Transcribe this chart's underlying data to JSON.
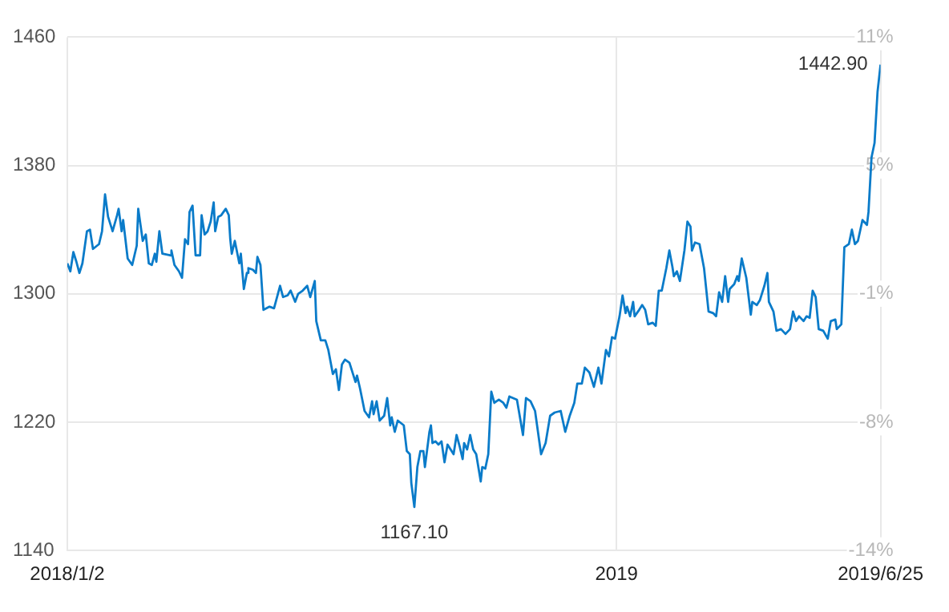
{
  "chart_data": {
    "type": "line",
    "x": [
      "2018-01-02",
      "2018-01-04",
      "2018-01-06",
      "2018-01-08",
      "2018-01-10",
      "2018-01-12",
      "2018-01-15",
      "2018-01-17",
      "2018-01-19",
      "2018-01-23",
      "2018-01-25",
      "2018-01-27",
      "2018-01-29",
      "2018-02-01",
      "2018-02-04",
      "2018-02-05",
      "2018-02-07",
      "2018-02-08",
      "2018-02-11",
      "2018-02-14",
      "2018-02-17",
      "2018-02-18",
      "2018-02-21",
      "2018-02-23",
      "2018-02-25",
      "2018-02-27",
      "2018-03-01",
      "2018-03-02",
      "2018-03-04",
      "2018-03-06",
      "2018-03-11",
      "2018-03-12",
      "2018-03-14",
      "2018-03-17",
      "2018-03-19",
      "2018-03-21",
      "2018-03-23",
      "2018-03-24",
      "2018-03-26",
      "2018-03-28",
      "2018-03-31",
      "2018-04-01",
      "2018-04-03",
      "2018-04-05",
      "2018-04-07",
      "2018-04-09",
      "2018-04-10",
      "2018-04-12",
      "2018-04-14",
      "2018-04-17",
      "2018-04-19",
      "2018-04-20",
      "2018-04-21",
      "2018-04-23",
      "2018-04-26",
      "2018-04-27",
      "2018-04-29",
      "2018-05-01",
      "2018-05-02",
      "2018-05-05",
      "2018-05-07",
      "2018-05-08",
      "2018-05-10",
      "2018-05-12",
      "2018-05-16",
      "2018-05-19",
      "2018-05-23",
      "2018-05-25",
      "2018-05-28",
      "2018-05-30",
      "2018-06-02",
      "2018-06-04",
      "2018-06-07",
      "2018-06-10",
      "2018-06-12",
      "2018-06-15",
      "2018-06-16",
      "2018-06-19",
      "2018-06-22",
      "2018-06-24",
      "2018-06-27",
      "2018-06-29",
      "2018-07-01",
      "2018-07-03",
      "2018-07-05",
      "2018-07-08",
      "2018-07-12",
      "2018-07-13",
      "2018-07-15",
      "2018-07-18",
      "2018-07-21",
      "2018-07-23",
      "2018-07-24",
      "2018-07-26",
      "2018-07-28",
      "2018-07-31",
      "2018-08-02",
      "2018-08-04",
      "2018-08-05",
      "2018-08-07",
      "2018-08-09",
      "2018-08-13",
      "2018-08-15",
      "2018-08-17",
      "2018-08-18",
      "2018-08-20",
      "2018-08-22",
      "2018-08-24",
      "2018-08-26",
      "2018-08-27",
      "2018-08-30",
      "2018-08-31",
      "2018-09-01",
      "2018-09-03",
      "2018-09-05",
      "2018-09-07",
      "2018-09-09",
      "2018-09-11",
      "2018-09-13",
      "2018-09-15",
      "2018-09-17",
      "2018-09-19",
      "2018-09-21",
      "2018-09-22",
      "2018-09-24",
      "2018-09-26",
      "2018-09-28",
      "2018-09-30",
      "2018-10-03",
      "2018-10-04",
      "2018-10-06",
      "2018-10-08",
      "2018-10-10",
      "2018-10-12",
      "2018-10-15",
      "2018-10-18",
      "2018-10-20",
      "2018-10-22",
      "2018-10-27",
      "2018-10-31",
      "2018-11-02",
      "2018-11-05",
      "2018-11-08",
      "2018-11-12",
      "2018-11-15",
      "2018-11-18",
      "2018-11-21",
      "2018-11-25",
      "2018-11-28",
      "2018-12-01",
      "2018-12-04",
      "2018-12-06",
      "2018-12-09",
      "2018-12-11",
      "2018-12-14",
      "2018-12-17",
      "2018-12-20",
      "2018-12-22",
      "2018-12-25",
      "2018-12-27",
      "2018-12-29",
      "2018-12-31",
      "2019-01-03",
      "2019-01-05",
      "2019-01-07",
      "2019-01-08",
      "2019-01-10",
      "2019-01-12",
      "2019-01-13",
      "2019-01-16",
      "2019-01-18",
      "2019-01-20",
      "2019-01-22",
      "2019-01-25",
      "2019-01-27",
      "2019-01-29",
      "2019-01-31",
      "2019-02-03",
      "2019-02-05",
      "2019-02-07",
      "2019-02-08",
      "2019-02-10",
      "2019-02-12",
      "2019-02-15",
      "2019-02-17",
      "2019-02-19",
      "2019-02-20",
      "2019-02-22",
      "2019-02-25",
      "2019-02-28",
      "2019-03-03",
      "2019-03-06",
      "2019-03-08",
      "2019-03-10",
      "2019-03-12",
      "2019-03-14",
      "2019-03-16",
      "2019-03-17",
      "2019-03-20",
      "2019-03-22",
      "2019-03-23",
      "2019-03-25",
      "2019-03-28",
      "2019-03-31",
      "2019-04-01",
      "2019-04-04",
      "2019-04-06",
      "2019-04-09",
      "2019-04-11",
      "2019-04-12",
      "2019-04-15",
      "2019-04-17",
      "2019-04-20",
      "2019-04-23",
      "2019-04-26",
      "2019-04-28",
      "2019-04-30",
      "2019-05-02",
      "2019-05-05",
      "2019-05-07",
      "2019-05-09",
      "2019-05-11",
      "2019-05-13",
      "2019-05-15",
      "2019-05-18",
      "2019-05-21",
      "2019-05-23",
      "2019-05-26",
      "2019-05-27",
      "2019-05-30",
      "2019-06-01",
      "2019-06-04",
      "2019-06-06",
      "2019-06-08",
      "2019-06-10",
      "2019-06-13",
      "2019-06-16",
      "2019-06-17",
      "2019-06-19",
      "2019-06-21",
      "2019-06-23",
      "2019-06-25"
    ],
    "series": [
      {
        "color": "#0a7bc9",
        "values": [
          1319,
          1314,
          1326,
          1320,
          1313,
          1319,
          1339,
          1340,
          1328,
          1331,
          1339,
          1362,
          1348,
          1339,
          1349,
          1353,
          1339,
          1346,
          1322,
          1318,
          1330,
          1353,
          1333,
          1337,
          1319,
          1318,
          1325,
          1320,
          1339,
          1325,
          1324,
          1327,
          1318,
          1314,
          1310,
          1334,
          1331,
          1351,
          1355,
          1324,
          1324,
          1349,
          1337,
          1339,
          1345,
          1357,
          1339,
          1348,
          1349,
          1353,
          1349,
          1334,
          1325,
          1333,
          1319,
          1325,
          1303,
          1313,
          1316,
          1315,
          1313,
          1323,
          1318,
          1290,
          1292,
          1291,
          1305,
          1298,
          1299,
          1302,
          1295,
          1300,
          1302,
          1305,
          1298,
          1308,
          1283,
          1271,
          1271,
          1265,
          1250,
          1253,
          1240,
          1256,
          1259,
          1257,
          1245,
          1249,
          1241,
          1227,
          1223,
          1233,
          1225,
          1233,
          1221,
          1224,
          1235,
          1218,
          1223,
          1214,
          1221,
          1218,
          1202,
          1200,
          1182,
          1167.1,
          1192,
          1202,
          1202,
          1192,
          1214,
          1218,
          1207,
          1208,
          1206,
          1208,
          1195,
          1206,
          1203,
          1200,
          1212,
          1205,
          1197,
          1207,
          1203,
          1212,
          1203,
          1200,
          1183,
          1192,
          1191,
          1200,
          1239,
          1232,
          1234,
          1232,
          1229,
          1236,
          1234,
          1212,
          1235,
          1233,
          1227,
          1200,
          1207,
          1224,
          1226,
          1227,
          1214,
          1224,
          1232,
          1244,
          1244,
          1254,
          1251,
          1242,
          1254,
          1244,
          1265,
          1261,
          1273,
          1272,
          1286,
          1299,
          1288,
          1292,
          1286,
          1295,
          1286,
          1290,
          1293,
          1290,
          1281,
          1282,
          1280,
          1302,
          1302,
          1316,
          1327,
          1317,
          1311,
          1314,
          1308,
          1327,
          1345,
          1342,
          1327,
          1332,
          1331,
          1316,
          1289,
          1288,
          1286,
          1301,
          1295,
          1311,
          1295,
          1303,
          1306,
          1311,
          1308,
          1322,
          1310,
          1287,
          1295,
          1293,
          1296,
          1305,
          1313,
          1295,
          1289,
          1277,
          1278,
          1275,
          1278,
          1289,
          1283,
          1286,
          1283,
          1286,
          1285,
          1302,
          1298,
          1278,
          1277,
          1272,
          1283,
          1284,
          1278,
          1281,
          1329,
          1331,
          1340,
          1331,
          1333,
          1346,
          1343,
          1351,
          1385,
          1394,
          1426,
          1442.9
        ]
      }
    ],
    "xlim": [
      "2018-01-02",
      "2019-06-25"
    ],
    "xticks": [
      {
        "value": "2018-01-02",
        "label": "2018/1/2"
      },
      {
        "value": "2019-01-01",
        "label": "2019"
      },
      {
        "value": "2019-06-25",
        "label": "2019/6/25"
      }
    ],
    "ylim": [
      1140,
      1460
    ],
    "yticks": [
      1140,
      1220,
      1300,
      1380,
      1460
    ],
    "y2lim": [
      -13.59,
      10.66
    ],
    "y2ticks": [
      {
        "value": -13.59,
        "label": "-14%"
      },
      {
        "value": -7.53,
        "label": "-8%"
      },
      {
        "value": -1.46,
        "label": "-1%"
      },
      {
        "value": 4.6,
        "label": "5%"
      },
      {
        "value": 10.66,
        "label": "11%"
      }
    ],
    "annotations": [
      {
        "text": "1442.90",
        "x": "2019-06-25",
        "y": 1442.9
      },
      {
        "text": "1167.10",
        "x": "2018-08-20",
        "y": 1167.1
      }
    ],
    "grid": true,
    "legend": false,
    "marker": "none",
    "line_style": "solid"
  }
}
